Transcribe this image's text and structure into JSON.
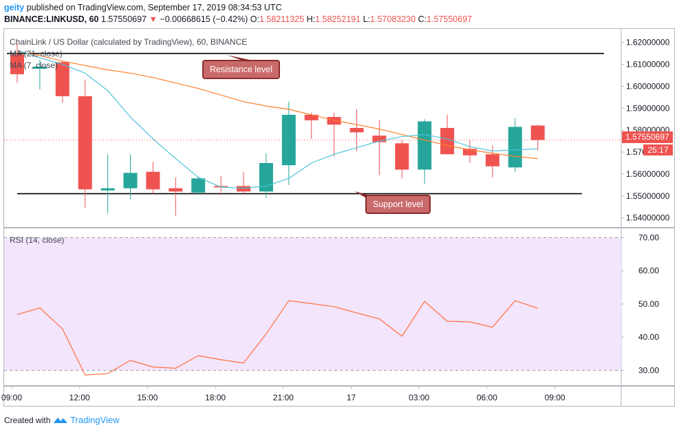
{
  "header": {
    "user": "geity",
    "published": "published on TradingView.com, September 17, 2019 08:34:53 UTC",
    "symbol": "BINANCE:LINKUSD, 60",
    "last": "1.57550697",
    "arrow": "▼",
    "change": "−0.00668615 (−0.42%)",
    "o_label": "O:",
    "o_value": "1.58211325",
    "h_label": "H:",
    "h_value": "1.58252191",
    "l_label": "L:",
    "l_value": "1.57083230",
    "c_label": "C:",
    "c_value": "1.57550697"
  },
  "legend": {
    "title": "ChainLink / US Dollar (calculated by TradingView), 60, BINANCE",
    "ma21": "MA (21, close)",
    "ma7": "MA (7, close)",
    "rsi": "RSI (14, close)"
  },
  "annotations": {
    "resistance": "Resistance level",
    "support": "Support level"
  },
  "price_tag": "1.57550697",
  "countdown": "25:17",
  "footer": {
    "created": "Created with",
    "brand": "TradingView"
  },
  "colors": {
    "up": "#26a69a",
    "down": "#ef5350",
    "ma21": "#ff7f27",
    "ma7": "#4cc3d9",
    "rsi": "#ff6e40",
    "rsi_band": "#f3e5fb"
  },
  "chart_data": [
    {
      "type": "candlestick",
      "title": "ChainLink / US Dollar (calculated by TradingView), 60, BINANCE",
      "x_labels": [
        "09:00",
        "12:00",
        "15:00",
        "18:00",
        "21:00",
        "17",
        "03:00",
        "06:00",
        "09:00"
      ],
      "x_label_index": [
        0,
        3,
        6,
        9,
        12,
        15,
        18,
        21,
        24
      ],
      "y_ticks": [
        "1.62000000",
        "1.61000000",
        "1.60000000",
        "1.59000000",
        "1.58000000",
        "1.57000000",
        "1.56000000",
        "1.55000000",
        "1.54000000"
      ],
      "ylim": [
        1.5355,
        1.6265
      ],
      "candles": [
        {
          "i": 0,
          "o": 1.6145,
          "h": 1.6195,
          "l": 1.6015,
          "c": 1.6055
        },
        {
          "i": 1,
          "o": 1.608,
          "h": 1.612,
          "l": 1.5985,
          "c": 1.609
        },
        {
          "i": 2,
          "o": 1.611,
          "h": 1.6115,
          "l": 1.5925,
          "c": 1.5955
        },
        {
          "i": 3,
          "o": 1.5955,
          "h": 1.603,
          "l": 1.5445,
          "c": 1.553
        },
        {
          "i": 4,
          "o": 1.5525,
          "h": 1.569,
          "l": 1.542,
          "c": 1.5535
        },
        {
          "i": 5,
          "o": 1.5535,
          "h": 1.569,
          "l": 1.5485,
          "c": 1.5605
        },
        {
          "i": 6,
          "o": 1.561,
          "h": 1.5655,
          "l": 1.551,
          "c": 1.553
        },
        {
          "i": 7,
          "o": 1.5535,
          "h": 1.5585,
          "l": 1.541,
          "c": 1.552
        },
        {
          "i": 8,
          "o": 1.5515,
          "h": 1.5585,
          "l": 1.5505,
          "c": 1.558
        },
        {
          "i": 9,
          "o": 1.5545,
          "h": 1.559,
          "l": 1.5505,
          "c": 1.554
        },
        {
          "i": 10,
          "o": 1.5545,
          "h": 1.561,
          "l": 1.551,
          "c": 1.552
        },
        {
          "i": 11,
          "o": 1.552,
          "h": 1.5695,
          "l": 1.549,
          "c": 1.565
        },
        {
          "i": 12,
          "o": 1.564,
          "h": 1.593,
          "l": 1.555,
          "c": 1.587
        },
        {
          "i": 13,
          "o": 1.587,
          "h": 1.588,
          "l": 1.576,
          "c": 1.5845
        },
        {
          "i": 14,
          "o": 1.586,
          "h": 1.588,
          "l": 1.568,
          "c": 1.5825
        },
        {
          "i": 15,
          "o": 1.581,
          "h": 1.5895,
          "l": 1.5705,
          "c": 1.579
        },
        {
          "i": 16,
          "o": 1.5775,
          "h": 1.5845,
          "l": 1.5595,
          "c": 1.5745
        },
        {
          "i": 17,
          "o": 1.574,
          "h": 1.5755,
          "l": 1.558,
          "c": 1.562
        },
        {
          "i": 18,
          "o": 1.562,
          "h": 1.585,
          "l": 1.5555,
          "c": 1.584
        },
        {
          "i": 19,
          "o": 1.581,
          "h": 1.587,
          "l": 1.569,
          "c": 1.569
        },
        {
          "i": 20,
          "o": 1.5715,
          "h": 1.5755,
          "l": 1.565,
          "c": 1.5685
        },
        {
          "i": 21,
          "o": 1.569,
          "h": 1.573,
          "l": 1.5585,
          "c": 1.5635
        },
        {
          "i": 22,
          "o": 1.563,
          "h": 1.5855,
          "l": 1.561,
          "c": 1.5815
        },
        {
          "i": 23,
          "o": 1.5821,
          "h": 1.5825,
          "l": 1.5708,
          "c": 1.5755
        }
      ],
      "ma21": [
        1.616,
        1.614,
        1.6115,
        1.6095,
        1.6075,
        1.606,
        1.604,
        1.6015,
        1.599,
        1.596,
        1.593,
        1.591,
        1.5895,
        1.587,
        1.5845,
        1.5825,
        1.5805,
        1.578,
        1.5755,
        1.573,
        1.571,
        1.5695,
        1.568,
        1.567
      ],
      "ma7": [
        1.6165,
        1.613,
        1.61,
        1.606,
        1.598,
        1.586,
        1.576,
        1.567,
        1.5585,
        1.554,
        1.5535,
        1.5545,
        1.558,
        1.565,
        1.569,
        1.572,
        1.575,
        1.577,
        1.578,
        1.576,
        1.5725,
        1.5705,
        1.571,
        1.5715
      ],
      "resistance": 1.615,
      "support": 1.551,
      "last_price": 1.57550697
    },
    {
      "type": "line",
      "title": "RSI (14, close)",
      "y_ticks": [
        "70.00",
        "60.00",
        "50.00",
        "40.00",
        "30.00"
      ],
      "ylim": [
        25.3,
        73.0
      ],
      "band": [
        30,
        70
      ],
      "values": [
        46.8,
        48.8,
        42.5,
        28.6,
        29.0,
        33.0,
        31.0,
        30.6,
        34.4,
        33.2,
        32.2,
        41.0,
        51.0,
        50.1,
        49.2,
        47.3,
        45.5,
        40.3,
        50.8,
        44.8,
        44.6,
        43.0,
        51.0,
        48.7
      ]
    }
  ]
}
